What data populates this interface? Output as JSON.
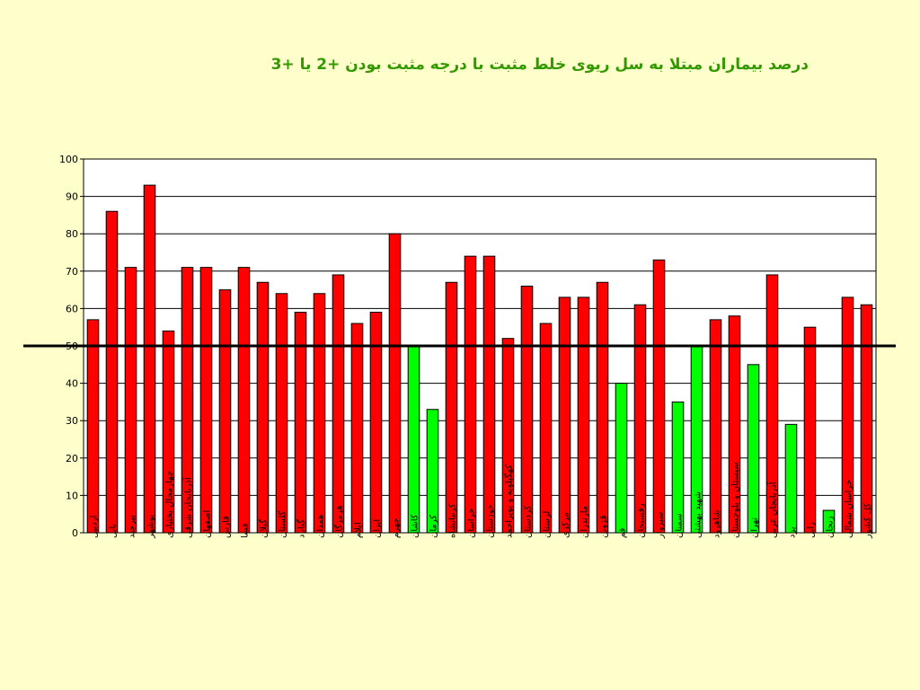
{
  "title": "درصد بیماران مبتلا به سل ریوی خلط مثبت با درجه مثبت بودن +2 یا +3",
  "colors": {
    "background": "#FFFFCC",
    "plot_background": "#FFFFFF",
    "title": "#339900",
    "above_threshold": "#FF0000",
    "below_threshold": "#00FF00",
    "threshold_line": "#000000"
  },
  "chart_data": {
    "type": "bar",
    "title": "درصد بیماران مبتلا به سل ریوی خلط مثبت با درجه مثبت بودن +2 یا +3",
    "xlabel": "",
    "ylabel": "",
    "ylim": [
      0,
      100
    ],
    "yticks": [
      "0",
      "10",
      "20",
      "30",
      "40",
      "50",
      "60",
      "70",
      "80",
      "90",
      "100"
    ],
    "grid": true,
    "legend": "none",
    "threshold": 50,
    "categories": [
      "اردبیل",
      "بابل",
      "بیرجند",
      "بوشهر",
      "چهارمحال بختیاری",
      "آذربایجان شرقی",
      "اصفهان",
      "فارس",
      "فسا",
      "گیلان",
      "گلستان",
      "گناباد",
      "همدان",
      "هرمزگان",
      "ایلام",
      "ایران",
      "جهرم",
      "کاشان",
      "کرمان",
      "کرمانشاه",
      "خراسان",
      "خوزستان",
      "کهگیلویه و بویراحمد",
      "کردستان",
      "لرستان",
      "مرکزی",
      "مازندران",
      "قزوین",
      "قم",
      "رفسنجان",
      "سبزوار",
      "سمنان",
      "شهید بهشتی",
      "شاهرود",
      "سیستان و بلوچستان",
      "تهران",
      "آذربایجان غربی",
      "یزد",
      "زابل",
      "زنجان",
      "خراسان شمالی",
      "کل کشور"
    ],
    "values": [
      57,
      86,
      71,
      93,
      54,
      71,
      71,
      65,
      71,
      67,
      64,
      59,
      64,
      69,
      56,
      59,
      80,
      50,
      33,
      67,
      74,
      74,
      52,
      66,
      56,
      63,
      63,
      67,
      40,
      61,
      73,
      35,
      50,
      57,
      58,
      45,
      69,
      29,
      55,
      6,
      63,
      61
    ],
    "bar_colors": [
      "red",
      "red",
      "red",
      "red",
      "red",
      "red",
      "red",
      "red",
      "red",
      "red",
      "red",
      "red",
      "red",
      "red",
      "red",
      "red",
      "red",
      "green",
      "green",
      "red",
      "red",
      "red",
      "red",
      "red",
      "red",
      "red",
      "red",
      "red",
      "green",
      "red",
      "red",
      "green",
      "green",
      "red",
      "red",
      "green",
      "red",
      "green",
      "red",
      "green",
      "red",
      "red"
    ]
  }
}
